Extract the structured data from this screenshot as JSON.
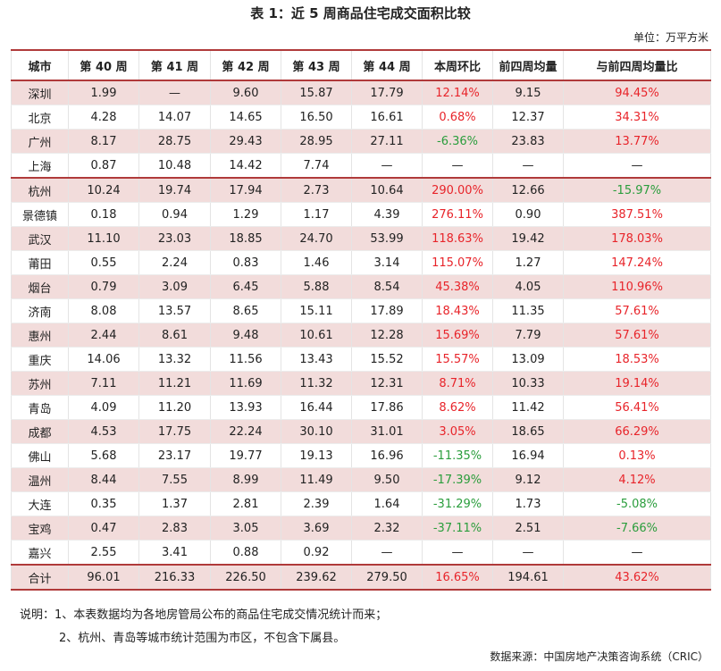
{
  "title": "表 1：近 5 周商品住宅成交面积比较",
  "unit": "单位：万平方米",
  "table": {
    "header": [
      "城市",
      "第 40 周",
      "第 41 周",
      "第 42 周",
      "第 43 周",
      "第 44 周",
      "本周环比",
      "前四周均量",
      "与前四周均量比"
    ],
    "rows": [
      [
        "深圳",
        "1.99",
        "—",
        "9.60",
        "15.87",
        "17.79",
        "12.14%",
        "9.15",
        "94.45%"
      ],
      [
        "北京",
        "4.28",
        "14.07",
        "14.65",
        "16.50",
        "16.61",
        "0.68%",
        "12.37",
        "34.31%"
      ],
      [
        "广州",
        "8.17",
        "28.75",
        "29.43",
        "28.95",
        "27.11",
        "-6.36%",
        "23.83",
        "13.77%"
      ],
      [
        "上海",
        "0.87",
        "10.48",
        "14.42",
        "7.74",
        "—",
        "—",
        "—",
        "—"
      ],
      [
        "杭州",
        "10.24",
        "19.74",
        "17.94",
        "2.73",
        "10.64",
        "290.00%",
        "12.66",
        "-15.97%"
      ],
      [
        "景德镇",
        "0.18",
        "0.94",
        "1.29",
        "1.17",
        "4.39",
        "276.11%",
        "0.90",
        "387.51%"
      ],
      [
        "武汉",
        "11.10",
        "23.03",
        "18.85",
        "24.70",
        "53.99",
        "118.63%",
        "19.42",
        "178.03%"
      ],
      [
        "莆田",
        "0.55",
        "2.24",
        "0.83",
        "1.46",
        "3.14",
        "115.07%",
        "1.27",
        "147.24%"
      ],
      [
        "烟台",
        "0.79",
        "3.09",
        "6.45",
        "5.88",
        "8.54",
        "45.38%",
        "4.05",
        "110.96%"
      ],
      [
        "济南",
        "8.08",
        "13.57",
        "8.65",
        "15.11",
        "17.89",
        "18.43%",
        "11.35",
        "57.61%"
      ],
      [
        "惠州",
        "2.44",
        "8.61",
        "9.48",
        "10.61",
        "12.28",
        "15.69%",
        "7.79",
        "57.61%"
      ],
      [
        "重庆",
        "14.06",
        "13.32",
        "11.56",
        "13.43",
        "15.52",
        "15.57%",
        "13.09",
        "18.53%"
      ],
      [
        "苏州",
        "7.11",
        "11.21",
        "11.69",
        "11.32",
        "12.31",
        "8.71%",
        "10.33",
        "19.14%"
      ],
      [
        "青岛",
        "4.09",
        "11.20",
        "13.93",
        "16.44",
        "17.86",
        "8.62%",
        "11.42",
        "56.41%"
      ],
      [
        "成都",
        "4.53",
        "17.75",
        "22.24",
        "30.10",
        "31.01",
        "3.05%",
        "18.65",
        "66.29%"
      ],
      [
        "佛山",
        "5.68",
        "23.17",
        "19.77",
        "19.13",
        "16.96",
        "-11.35%",
        "16.94",
        "0.13%"
      ],
      [
        "温州",
        "8.44",
        "7.55",
        "8.99",
        "11.49",
        "9.50",
        "-17.39%",
        "9.12",
        "4.12%"
      ],
      [
        "大连",
        "0.35",
        "1.37",
        "2.81",
        "2.39",
        "1.64",
        "-31.29%",
        "1.73",
        "-5.08%"
      ],
      [
        "宝鸡",
        "0.47",
        "2.83",
        "3.05",
        "3.69",
        "2.32",
        "-37.11%",
        "2.51",
        "-7.66%"
      ],
      [
        "嘉兴",
        "2.55",
        "3.41",
        "0.88",
        "0.92",
        "—",
        "—",
        "—",
        "—"
      ],
      [
        "合计",
        "96.01",
        "216.33",
        "226.50",
        "239.62",
        "279.50",
        "16.65%",
        "194.61",
        "43.62%"
      ]
    ]
  },
  "notes": [
    "说明：1、本表数据均为各地房管局公布的商品住宅成交情况统计而来；",
    "2、杭州、青岛等城市统计范围为市区，不包含下属县。"
  ],
  "source": "数据来源：中国房地产决策咨询系统（CRIC）"
}
